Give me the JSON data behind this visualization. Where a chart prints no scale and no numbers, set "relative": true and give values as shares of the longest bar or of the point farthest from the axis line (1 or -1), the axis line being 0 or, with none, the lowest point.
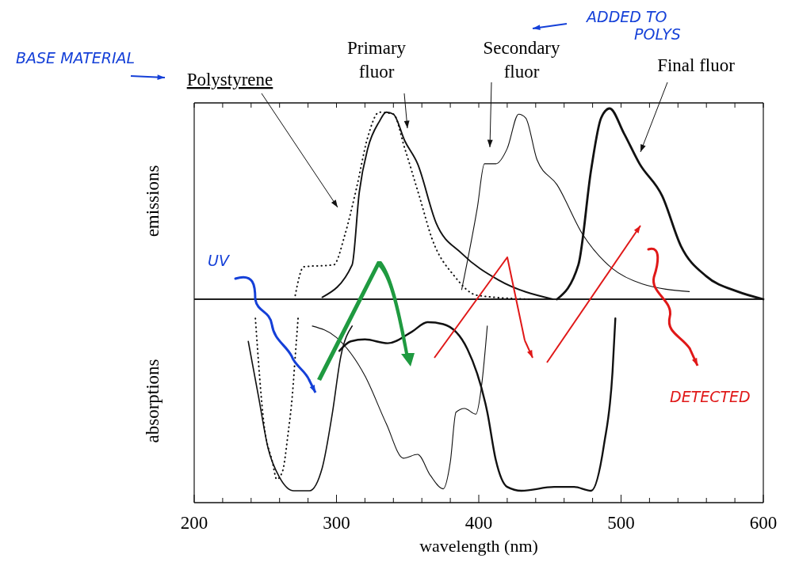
{
  "chart_data": [
    {
      "type": "line",
      "relative": true,
      "ylabel": "emissions",
      "legend": false,
      "tick_labels": false,
      "xlim": [
        200,
        600
      ],
      "xticks": [
        {
          "value": 200,
          "label": null
        },
        {
          "value": 220,
          "label": null
        },
        {
          "value": 240,
          "label": null
        },
        {
          "value": 260,
          "label": null
        },
        {
          "value": 280,
          "label": null
        },
        {
          "value": 300,
          "label": null
        },
        {
          "value": 320,
          "label": null
        },
        {
          "value": 340,
          "label": null
        },
        {
          "value": 360,
          "label": null
        },
        {
          "value": 380,
          "label": null
        },
        {
          "value": 400,
          "label": null
        },
        {
          "value": 420,
          "label": null
        },
        {
          "value": 440,
          "label": null
        },
        {
          "value": 460,
          "label": null
        },
        {
          "value": 480,
          "label": null
        },
        {
          "value": 500,
          "label": null
        },
        {
          "value": 520,
          "label": null
        },
        {
          "value": 540,
          "label": null
        },
        {
          "value": 560,
          "label": null
        },
        {
          "value": 580,
          "label": null
        },
        {
          "value": 600,
          "label": null
        }
      ],
      "annotations": [
        "BASE MATERIAL",
        "ADDED TO POLYS",
        "UV"
      ],
      "series": [
        {
          "name": "Polystyrene",
          "color": "#111111",
          "line_style": "dotted",
          "x": [
            271,
            277,
            298,
            306,
            314,
            322,
            330,
            340,
            348,
            359,
            367,
            383,
            399,
            436
          ],
          "values": [
            0.02,
            0.17,
            0.18,
            0.34,
            0.58,
            0.85,
            0.98,
            0.97,
            0.79,
            0.52,
            0.32,
            0.12,
            0.02,
            0
          ]
        },
        {
          "name": "Primary fluor",
          "color": "#111111",
          "line_style": "solid",
          "x": [
            290,
            311,
            316,
            322,
            330,
            335,
            340,
            348,
            357,
            370,
            388,
            414,
            452
          ],
          "values": [
            0.01,
            0.18,
            0.56,
            0.79,
            0.93,
            0.98,
            0.97,
            0.83,
            0.71,
            0.4,
            0.24,
            0.1,
            0
          ]
        },
        {
          "name": "Secondary fluor",
          "color": "#111111",
          "line_style": "solid",
          "x": [
            388,
            399,
            404,
            412,
            420,
            428,
            433,
            441,
            455,
            473,
            494,
            515,
            548
          ],
          "values": [
            0.05,
            0.48,
            0.71,
            0.71,
            0.79,
            0.97,
            0.95,
            0.73,
            0.6,
            0.34,
            0.16,
            0.08,
            0.04
          ]
        },
        {
          "name": "Final fluor",
          "color": "#111111",
          "line_style": "solid",
          "x": [
            455,
            470,
            479,
            486,
            492,
            502,
            513,
            529,
            542,
            560,
            582,
            600
          ],
          "values": [
            0,
            0.18,
            0.68,
            0.95,
            1,
            0.87,
            0.71,
            0.54,
            0.28,
            0.12,
            0.04,
            0
          ]
        }
      ]
    },
    {
      "type": "line",
      "relative": true,
      "ylabel": "absorptions",
      "xlabel": "wavelength (nm)",
      "legend": false,
      "tick_labels": "x",
      "xlim": [
        200,
        600
      ],
      "xticks": [
        200,
        {
          "value": 220,
          "label": null
        },
        {
          "value": 240,
          "label": null
        },
        {
          "value": 260,
          "label": null
        },
        {
          "value": 280,
          "label": null
        },
        300,
        {
          "value": 320,
          "label": null
        },
        {
          "value": 340,
          "label": null
        },
        {
          "value": 360,
          "label": null
        },
        {
          "value": 380,
          "label": null
        },
        400,
        {
          "value": 420,
          "label": null
        },
        {
          "value": 440,
          "label": null
        },
        {
          "value": 460,
          "label": null
        },
        {
          "value": 480,
          "label": null
        },
        500,
        {
          "value": 520,
          "label": null
        },
        {
          "value": 540,
          "label": null
        },
        {
          "value": 560,
          "label": null
        },
        {
          "value": 580,
          "label": null
        },
        600
      ],
      "annotations": [
        "DETECTED"
      ],
      "series": [
        {
          "color": "#111111",
          "line_style": "dotted",
          "x": [
            243,
            249,
            255,
            258,
            262,
            266,
            269,
            271,
            273
          ],
          "values": [
            -0.1,
            -0.65,
            -0.85,
            -0.94,
            -0.9,
            -0.7,
            -0.5,
            -0.3,
            -0.1
          ]
        },
        {
          "color": "#111111",
          "line_style": "solid",
          "x": [
            238,
            245,
            252,
            260,
            270,
            281,
            290,
            297,
            303,
            311
          ],
          "values": [
            -0.22,
            -0.5,
            -0.78,
            -0.93,
            -1.0,
            -1.0,
            -0.88,
            -0.6,
            -0.3,
            -0.14
          ]
        },
        {
          "color": "#111111",
          "line_style": "solid",
          "x": [
            283,
            300,
            320,
            335,
            347,
            357,
            366,
            375,
            380,
            384,
            390,
            398,
            402,
            406
          ],
          "values": [
            -0.14,
            -0.2,
            -0.4,
            -0.65,
            -0.83,
            -0.81,
            -0.92,
            -0.99,
            -0.85,
            -0.59,
            -0.57,
            -0.6,
            -0.45,
            -0.14
          ]
        },
        {
          "color": "#111111",
          "line_style": "solid",
          "x": [
            302,
            310,
            320,
            336,
            353,
            364,
            375,
            392,
            406,
            412,
            420,
            430,
            453,
            467,
            479,
            488,
            494,
            496
          ],
          "values": [
            -0.27,
            -0.22,
            -0.21,
            -0.23,
            -0.17,
            -0.12,
            -0.13,
            -0.26,
            -0.59,
            -0.84,
            -0.98,
            -1.0,
            -0.98,
            -0.98,
            -1.0,
            -0.76,
            -0.38,
            -0.1
          ]
        }
      ]
    }
  ]
}
